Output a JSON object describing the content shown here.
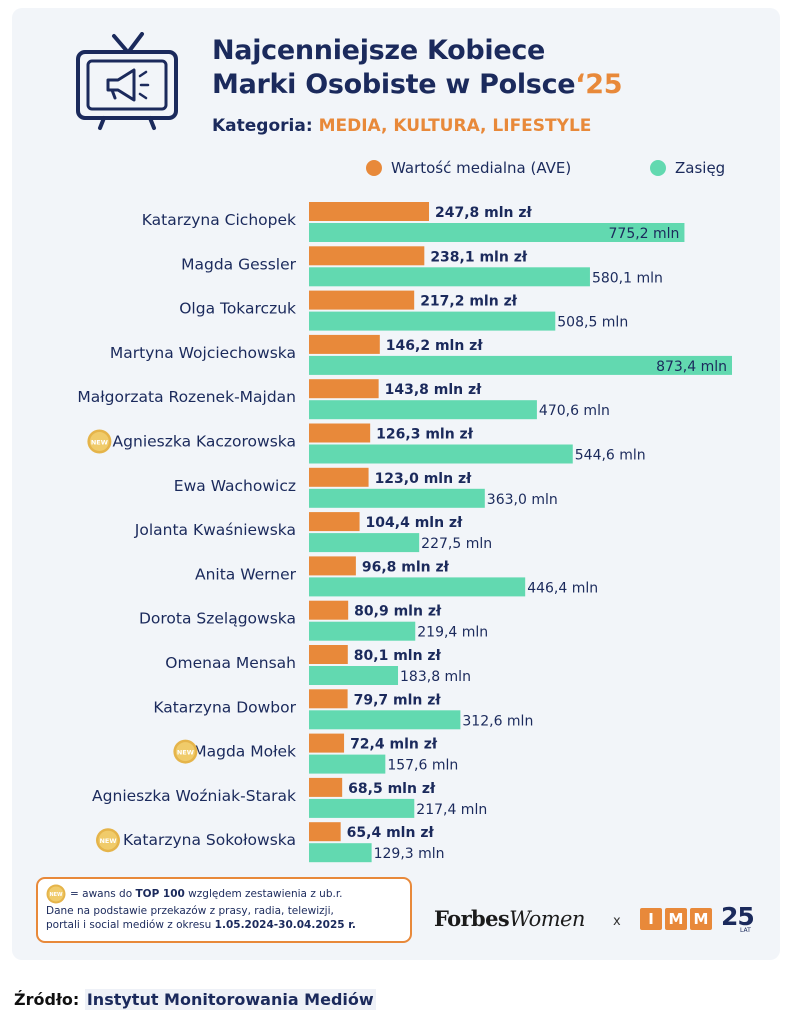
{
  "header": {
    "title_line1": "Najcenniejsze Kobiece",
    "title_line2": "Marki Osobiste w Polsce",
    "title_year": "‘25",
    "category_label": "Kategoria:",
    "category_value": "MEDIA, KULTURA, LIFESTYLE"
  },
  "legend": {
    "ave_label": "Wartość medialna (AVE)",
    "reach_label": "Zasięg"
  },
  "colors": {
    "ave": "#e8893a",
    "reach": "#62d9b0",
    "text": "#1b2a5c"
  },
  "chart_data": {
    "type": "bar",
    "orientation": "horizontal",
    "grouped": true,
    "categories": [
      "Katarzyna Cichopek",
      "Magda Gessler",
      "Olga Tokarczuk",
      "Martyna Wojciechowska",
      "Małgorzata Rozenek-Majdan",
      "Agnieszka Kaczorowska",
      "Ewa Wachowicz",
      "Jolanta Kwaśniewska",
      "Anita Werner",
      "Dorota Szelągowska",
      "Omenaa Mensah",
      "Katarzyna Dowbor",
      "Magda Mołek",
      "Agnieszka Woźniak-Starak",
      "Katarzyna Sokołowska"
    ],
    "new_entries": [
      "Agnieszka Kaczorowska",
      "Magda Mołek",
      "Katarzyna Sokołowska"
    ],
    "series": [
      {
        "name": "Wartość medialna (AVE)",
        "values": [
          247.8,
          238.1,
          217.2,
          146.2,
          143.8,
          126.3,
          123.0,
          104.4,
          96.8,
          80.9,
          80.1,
          79.7,
          72.4,
          68.5,
          65.4
        ],
        "labels": [
          "247,8 mln zł",
          "238,1 mln zł",
          "217,2 mln zł",
          "146,2 mln zł",
          "143,8 mln zł",
          "126,3 mln zł",
          "123,0 mln zł",
          "104,4 mln zł",
          "96,8 mln zł",
          "80,9 mln zł",
          "80,1 mln zł",
          "79,7 mln zł",
          "72,4 mln zł",
          "68,5 mln zł",
          "65,4 mln zł"
        ]
      },
      {
        "name": "Zasięg",
        "values": [
          775.2,
          580.1,
          508.5,
          873.4,
          470.6,
          544.6,
          363.0,
          227.5,
          446.4,
          219.4,
          183.8,
          312.6,
          157.6,
          217.4,
          129.3
        ],
        "labels": [
          "775,2 mln",
          "580,1 mln",
          "508,5 mln",
          "873,4 mln",
          "470,6 mln",
          "544,6 mln",
          "363,0 mln",
          "227,5 mln",
          "446,4 mln",
          "219,4 mln",
          "183,8 mln",
          "312,6 mln",
          "157,6 mln",
          "217,4 mln",
          "129,3 mln"
        ]
      }
    ]
  },
  "badge": {
    "text": "NEW",
    "icon": "new-badge-icon"
  },
  "footnote": {
    "line1_pre": "= awans do ",
    "line1_bold": "TOP 100",
    "line1_post": " względem zestawienia z ub.r.",
    "line2": "Dane na podstawie przekazów z prasy, radia, telewizji,",
    "line3_pre": "portali i social mediów z okresu ",
    "line3_bold": "1.05.2024-30.04.2025 r."
  },
  "brands": {
    "forbes_1": "Forbes",
    "forbes_2": "Women",
    "x": "x",
    "imm_letters": [
      "I",
      "M",
      "M"
    ],
    "imm_25": "25",
    "imm_25_sub": "LAT"
  },
  "source": {
    "label": "Źródło:",
    "link": "Instytut Monitorowania Mediów"
  }
}
